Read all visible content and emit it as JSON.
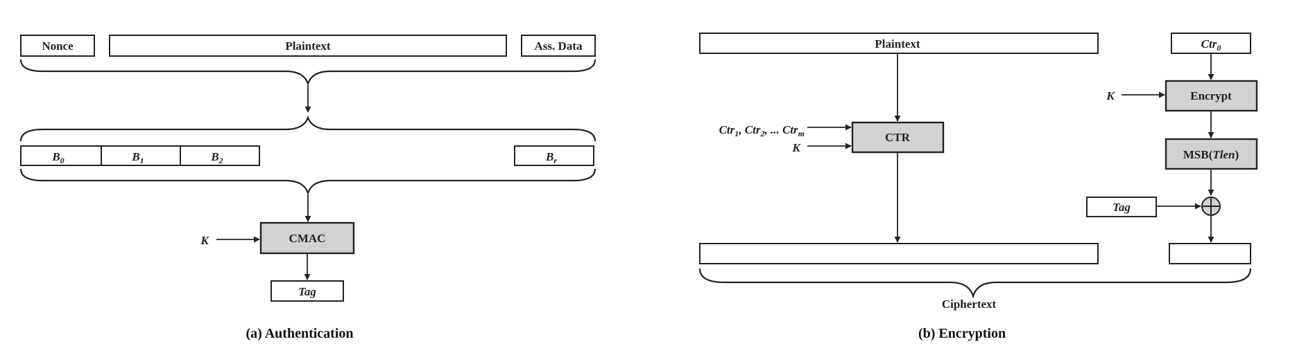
{
  "auth": {
    "nonce": "Nonce",
    "plaintext": "Plaintext",
    "ass_data": "Ass. Data",
    "blocks": [
      {
        "main": "B",
        "sub": "0"
      },
      {
        "main": "B",
        "sub": "1"
      },
      {
        "main": "B",
        "sub": "2"
      },
      {
        "main": "B",
        "sub": "r"
      }
    ],
    "key": "K",
    "cmac": "CMAC",
    "tag": "Tag",
    "caption": "(a) Authentication"
  },
  "enc": {
    "plaintext": "Plaintext",
    "ctr": "CTR",
    "ctr_inputs": {
      "p1": "Ctr",
      "s1": "1",
      "p2": ", Ctr",
      "s2": "2",
      "p3": ", ... Ctr",
      "s3": "m"
    },
    "key_ctr": "K",
    "ctr0": {
      "main": "Ctr",
      "sub": "0"
    },
    "key_encrypt": "K",
    "encrypt": "Encrypt",
    "msb": {
      "prefix": "MSB(",
      "italic": "Tlen",
      "suffix": ")"
    },
    "tag": "Tag",
    "ciphertext": "Ciphertext",
    "caption": "(b) Encryption"
  },
  "colors": {
    "function_box_fill": "#d2d2d2",
    "line": "#222222"
  }
}
